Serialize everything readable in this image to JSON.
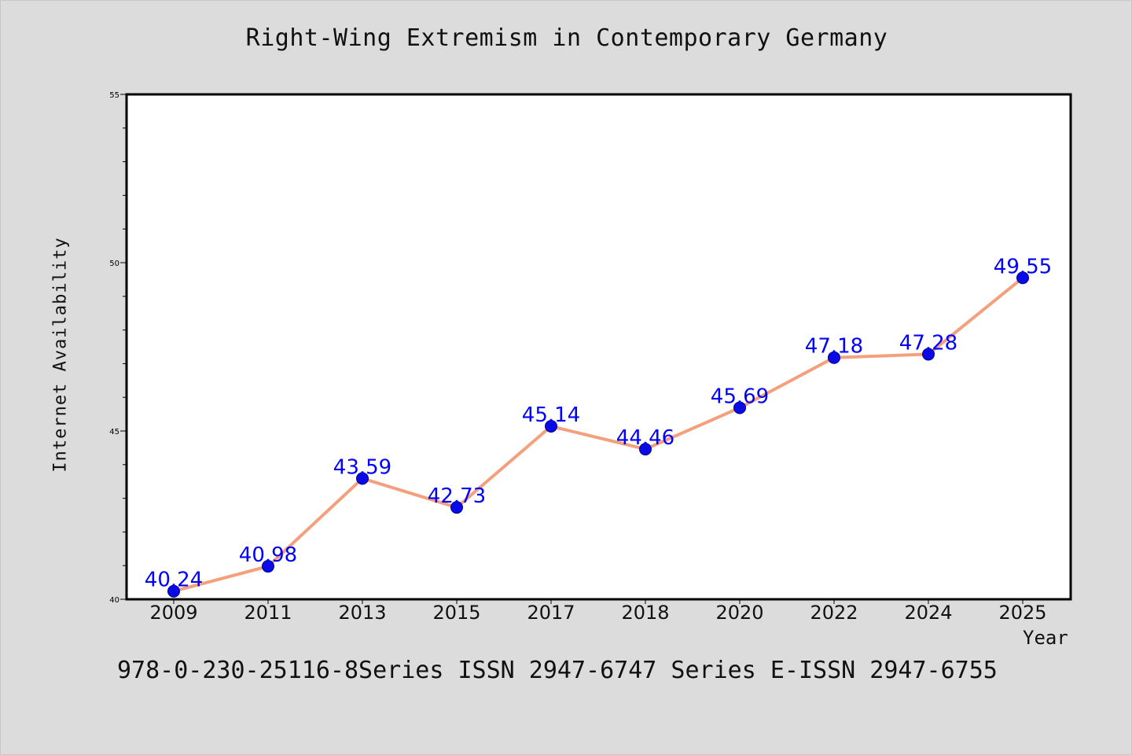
{
  "chart_data": {
    "type": "line",
    "title": "Right-Wing Extremism in Contemporary Germany",
    "xlabel": "Year",
    "ylabel": "Internet Availability",
    "categories": [
      "2009",
      "2011",
      "2013",
      "2015",
      "2017",
      "2018",
      "2020",
      "2022",
      "2024",
      "2025"
    ],
    "series": [
      {
        "values": [
          40.24,
          40.98,
          43.59,
          42.73,
          45.14,
          44.46,
          45.69,
          47.18,
          47.28,
          49.55
        ],
        "line_color": "#f4a07c",
        "marker_color": "#0a0ae6"
      }
    ],
    "data_labels": [
      "40.24",
      "40.98",
      "43.59",
      "42.73",
      "45.14",
      "44.46",
      "45.69",
      "47.18",
      "47.28",
      "49.55"
    ],
    "label_color": "#0000ff",
    "ylim": [
      40,
      55
    ],
    "y_major_ticks": [
      40,
      45,
      50,
      55
    ],
    "y_tick_labels": [
      "40",
      "45",
      "50",
      "55"
    ],
    "y_minor_step": 1,
    "grid": false,
    "legend": "none"
  },
  "footer": "978-0-230-25116-8Series ISSN 2947-6747 Series E-ISSN 2947-6755"
}
